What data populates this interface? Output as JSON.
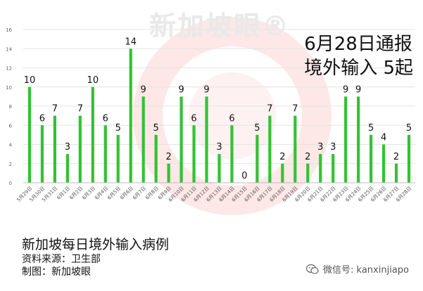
{
  "watermark": {
    "text": "新加坡眼®"
  },
  "headline": {
    "line1": "6月28日通报",
    "line2": "境外输入 5起"
  },
  "caption": {
    "title": "新加坡每日境外输入病例",
    "source": "资料来源：卫生部",
    "maker": "制图：新加坡眼"
  },
  "wechat": {
    "label": "微信号: kanxinjiapo"
  },
  "colors": {
    "bar": "#33c233",
    "grid": "#e4e4e4",
    "axis": "#333333",
    "watermark": "#ef3a3a"
  },
  "chart_data": {
    "type": "bar",
    "title": "",
    "xlabel": "",
    "ylabel": "",
    "ylim": [
      0,
      16
    ],
    "yticks": [
      0,
      2,
      4,
      6,
      8,
      10,
      12,
      14,
      16
    ],
    "grid": true,
    "categories": [
      "5月29日",
      "5月30日",
      "5月31日",
      "6月1日",
      "6月2日",
      "6月3日",
      "6月4日",
      "6月5日",
      "6月6日",
      "6月7日",
      "6月8日",
      "6月9日",
      "6月10日",
      "6月11日",
      "6月12日",
      "6月13日",
      "6月14日",
      "6月15日",
      "6月16日",
      "6月17日",
      "6月18日",
      "6月19日",
      "6月20日",
      "6月21日",
      "6月22日",
      "6月23日",
      "6月24日",
      "6月25日",
      "6月26日",
      "6月27日",
      "6月28日"
    ],
    "values": [
      10,
      6,
      7,
      3,
      7,
      10,
      6,
      5,
      14,
      9,
      5,
      2,
      9,
      6,
      9,
      3,
      6,
      0,
      5,
      7,
      2,
      7,
      2,
      3,
      3,
      9,
      9,
      5,
      4,
      2,
      5
    ]
  }
}
